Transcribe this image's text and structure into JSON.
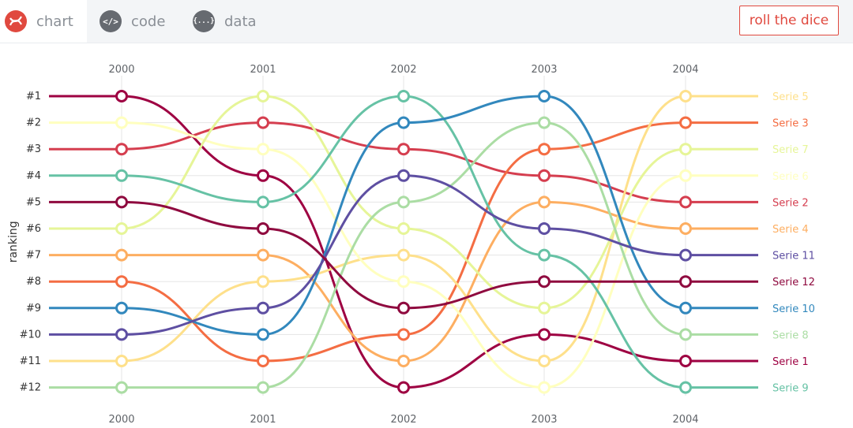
{
  "tabs": [
    {
      "label": "chart",
      "icon": "chart-icon",
      "glyph": "❄"
    },
    {
      "label": "code",
      "icon": "code-icon",
      "glyph": "</>"
    },
    {
      "label": "data",
      "icon": "data-icon",
      "glyph": "{...}"
    }
  ],
  "action_button": "roll the dice",
  "colors": {
    "accent": "#e0493f",
    "grid": "#e5e5e5"
  },
  "chart_data": {
    "type": "line",
    "title": "",
    "xlabel": "",
    "ylabel": "ranking",
    "categories": [
      "2000",
      "2001",
      "2002",
      "2003",
      "2004"
    ],
    "rank_labels": [
      "#1",
      "#2",
      "#3",
      "#4",
      "#5",
      "#6",
      "#7",
      "#8",
      "#9",
      "#10",
      "#11",
      "#12"
    ],
    "ylim": [
      1,
      12
    ],
    "grid": true,
    "series": [
      {
        "name": "Serie 1",
        "color": "#9e0142",
        "values": [
          1,
          4,
          12,
          10,
          11
        ]
      },
      {
        "name": "Serie 2",
        "color": "#d53e4f",
        "values": [
          3,
          2,
          3,
          4,
          5
        ]
      },
      {
        "name": "Serie 3",
        "color": "#f46d43",
        "values": [
          8,
          11,
          10,
          3,
          2
        ]
      },
      {
        "name": "Serie 4",
        "color": "#fdae61",
        "values": [
          7,
          7,
          11,
          5,
          6
        ]
      },
      {
        "name": "Serie 5",
        "color": "#fee08b",
        "values": [
          11,
          8,
          7,
          11,
          1
        ]
      },
      {
        "name": "Serie 6",
        "color": "#ffffbf",
        "values": [
          2,
          3,
          8,
          12,
          4
        ]
      },
      {
        "name": "Serie 7",
        "color": "#e6f598",
        "values": [
          6,
          1,
          6,
          9,
          3
        ]
      },
      {
        "name": "Serie 8",
        "color": "#abdda4",
        "values": [
          12,
          12,
          5,
          2,
          10
        ]
      },
      {
        "name": "Serie 9",
        "color": "#66c2a5",
        "values": [
          4,
          5,
          1,
          7,
          12
        ]
      },
      {
        "name": "Serie 10",
        "color": "#3288bd",
        "values": [
          9,
          10,
          2,
          1,
          9
        ]
      },
      {
        "name": "Serie 11",
        "color": "#5e4fa2",
        "values": [
          10,
          9,
          4,
          6,
          7
        ]
      },
      {
        "name": "Serie 12",
        "color": "#8f0a3f",
        "values": [
          5,
          6,
          9,
          8,
          8
        ]
      }
    ]
  }
}
